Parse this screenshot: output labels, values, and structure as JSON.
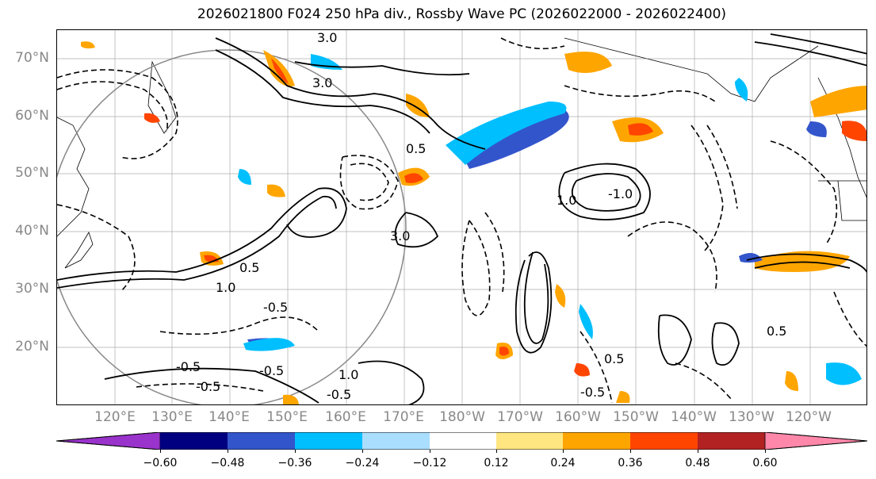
{
  "title": "2026021800 F024 250 hPa div., Rossby Wave PC (2026022000 - 2026022400)",
  "lat_labels": [
    "70°N",
    "60°N",
    "50°N",
    "40°N",
    "30°N",
    "20°N"
  ],
  "lon_labels": [
    "120°E",
    "130°E",
    "140°E",
    "150°E",
    "160°E",
    "170°E",
    "180°W",
    "170°W",
    "160°W",
    "150°W",
    "140°W",
    "130°W",
    "120°W"
  ],
  "colorbar": {
    "colors": [
      "#9933cc",
      "#000080",
      "#3355cc",
      "#00bfff",
      "#aadeff",
      "#ffffff",
      "#ffe680",
      "#ffa500",
      "#ff4500",
      "#b22222",
      "#ff88aa"
    ],
    "tick_labels": [
      "−0.60",
      "−0.48",
      "−0.36",
      "−0.24",
      "−0.12",
      "0.12",
      "0.24",
      "0.36",
      "0.48",
      "0.60"
    ]
  },
  "contour_labels": [
    "3.0",
    "3.0",
    "0.5",
    "0.5",
    "-0.5",
    "-0.5",
    "-0.5",
    "1.0",
    "-1.0",
    "0.5",
    "-0.5",
    "1.0",
    "0.5",
    "-0.5",
    "3.0",
    "1.0",
    "-0.5"
  ]
}
